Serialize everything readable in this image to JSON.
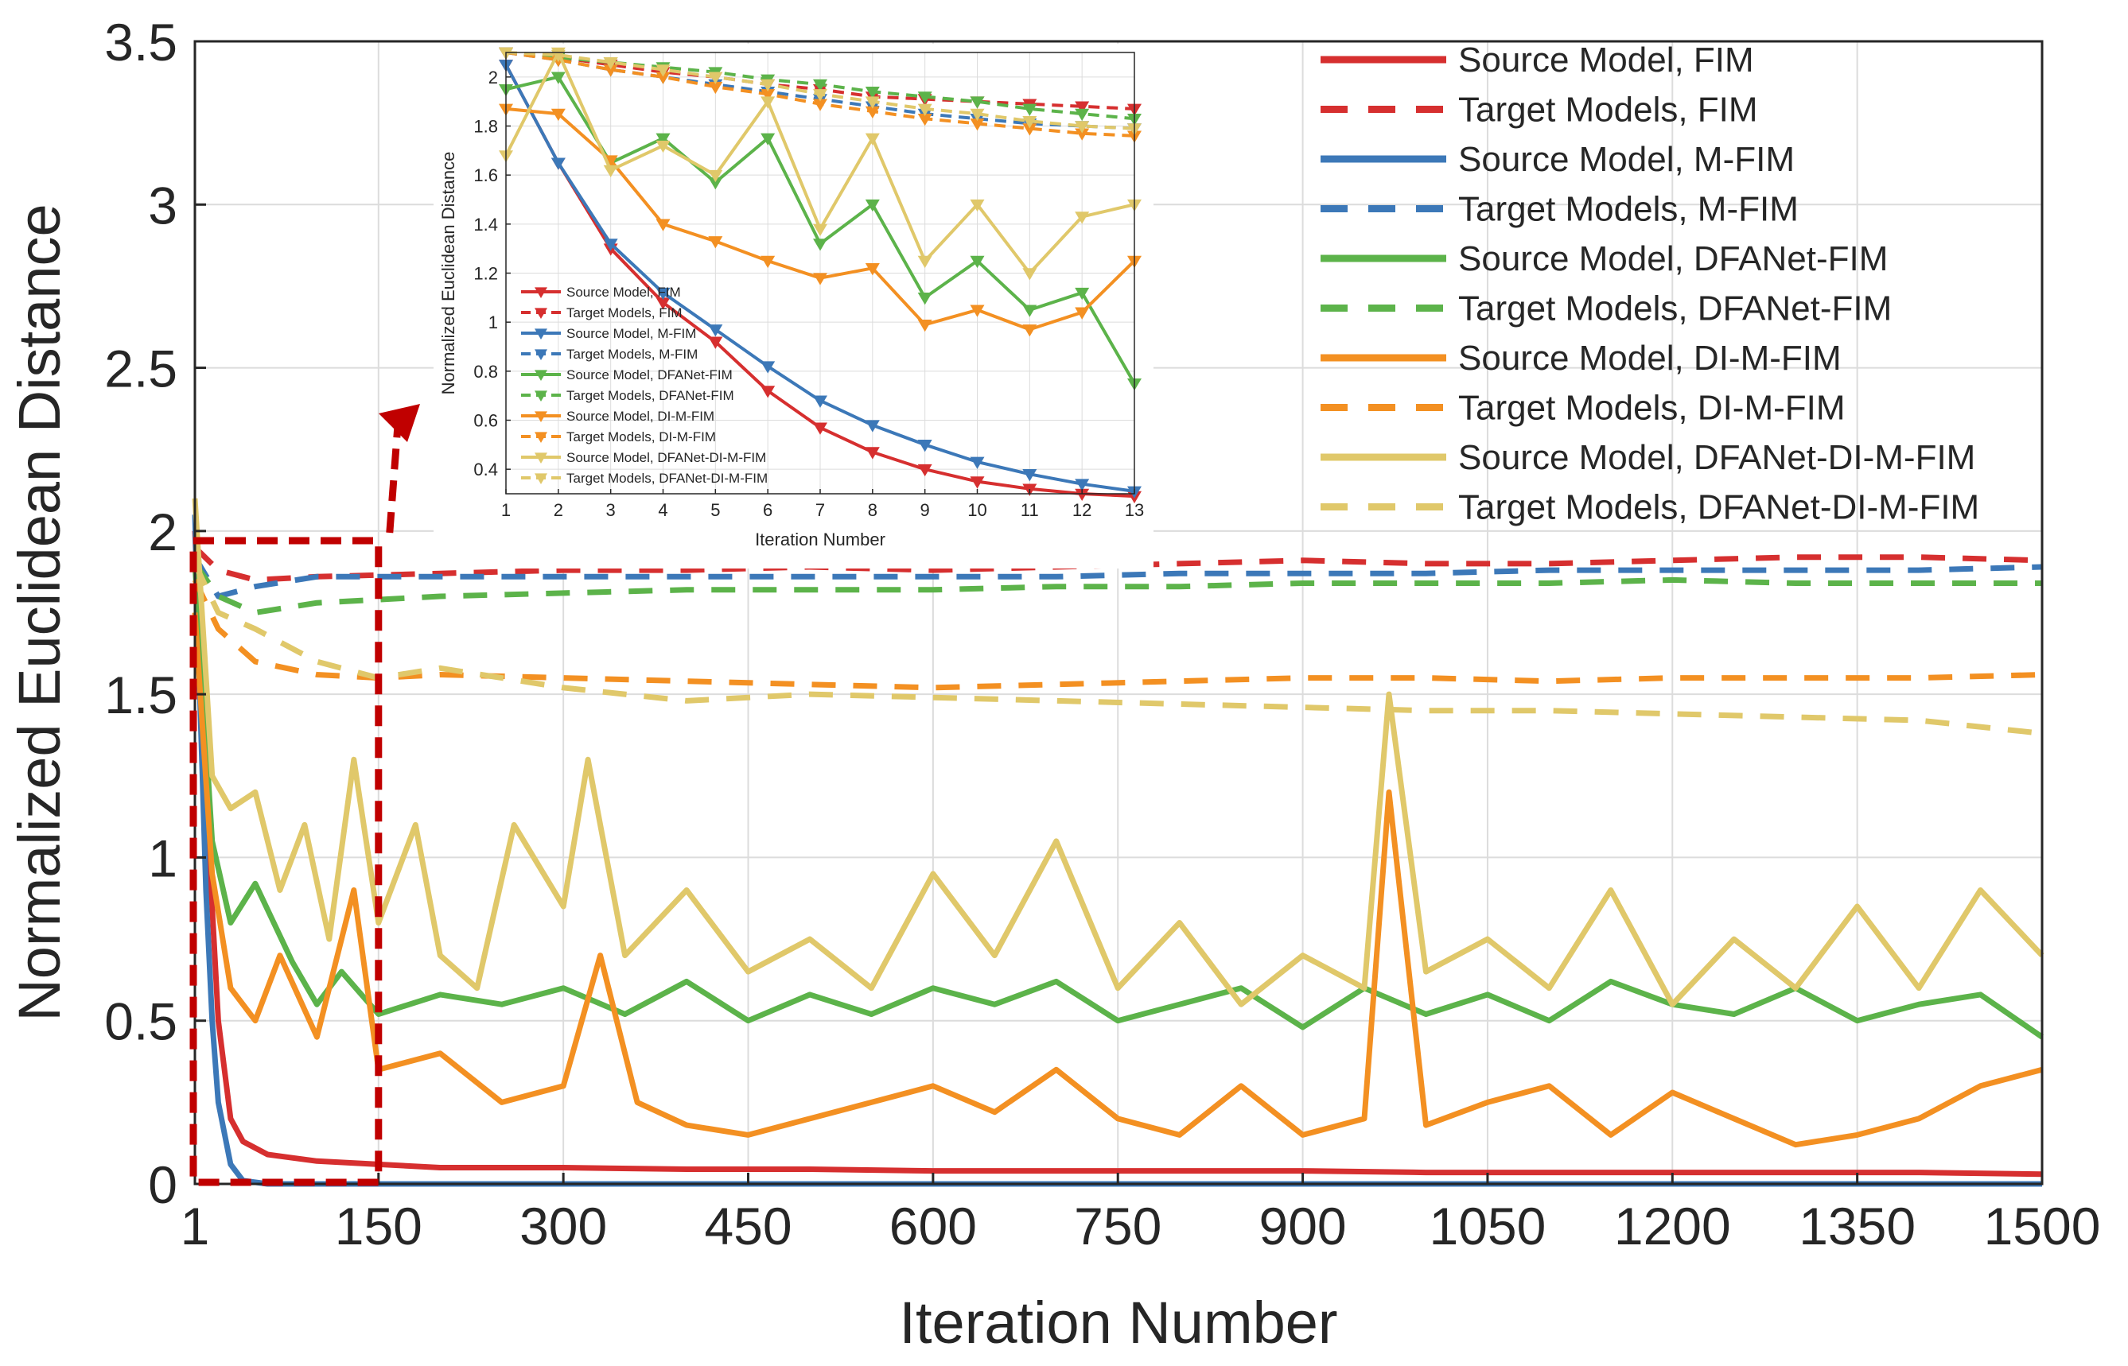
{
  "chart_data": [
    {
      "type": "line",
      "name": "main",
      "xlabel": "Iteration Number",
      "ylabel": "Normalized Euclidean Distance",
      "xlim": [
        1,
        1500
      ],
      "ylim": [
        0,
        3.5
      ],
      "xticks": [
        1,
        150,
        300,
        450,
        600,
        750,
        900,
        1050,
        1200,
        1350,
        1500
      ],
      "xtick_labels": [
        "1",
        "150",
        "300",
        "450",
        "600",
        "750",
        "900",
        "1050",
        "1200",
        "1350",
        "1500"
      ],
      "yticks": [
        0,
        0.5,
        1,
        1.5,
        2,
        2.5,
        3,
        3.5
      ],
      "ytick_labels": [
        "0",
        "0.5",
        "1",
        "1.5",
        "2",
        "2.5",
        "3",
        "3.5"
      ],
      "grid": true,
      "legend_position": "top-right",
      "series": [
        {
          "name": "Source Model, FIM",
          "color": "#d62f2f",
          "style": "solid",
          "x": [
            1,
            10,
            20,
            30,
            40,
            60,
            80,
            100,
            150,
            200,
            300,
            400,
            500,
            600,
            700,
            800,
            900,
            1000,
            1100,
            1200,
            1300,
            1400,
            1500
          ],
          "values": [
            2.0,
            1.2,
            0.5,
            0.2,
            0.13,
            0.09,
            0.08,
            0.07,
            0.06,
            0.05,
            0.05,
            0.045,
            0.045,
            0.04,
            0.04,
            0.04,
            0.04,
            0.035,
            0.035,
            0.035,
            0.035,
            0.035,
            0.03
          ]
        },
        {
          "name": "Target Models, FIM",
          "color": "#d62f2f",
          "style": "dashed",
          "x": [
            1,
            20,
            50,
            100,
            200,
            300,
            400,
            500,
            600,
            700,
            800,
            900,
            1000,
            1100,
            1200,
            1300,
            1400,
            1500
          ],
          "values": [
            1.95,
            1.88,
            1.85,
            1.86,
            1.87,
            1.88,
            1.88,
            1.89,
            1.88,
            1.89,
            1.9,
            1.91,
            1.9,
            1.9,
            1.91,
            1.92,
            1.92,
            1.91
          ]
        },
        {
          "name": "Source Model, M-FIM",
          "color": "#3c78b8",
          "style": "solid",
          "x": [
            1,
            5,
            10,
            15,
            20,
            30,
            40,
            60,
            100,
            200,
            400,
            600,
            800,
            1000,
            1200,
            1500
          ],
          "values": [
            2.05,
            1.5,
            0.9,
            0.5,
            0.25,
            0.06,
            0.01,
            0.0,
            0.0,
            0.0,
            0.0,
            0.0,
            0.0,
            0.0,
            0.0,
            0.0
          ]
        },
        {
          "name": "Target Models, M-FIM",
          "color": "#3c78b8",
          "style": "dashed",
          "x": [
            1,
            20,
            50,
            100,
            200,
            300,
            400,
            500,
            600,
            700,
            800,
            900,
            1000,
            1100,
            1200,
            1300,
            1400,
            1500
          ],
          "values": [
            1.92,
            1.8,
            1.83,
            1.86,
            1.86,
            1.86,
            1.86,
            1.86,
            1.86,
            1.86,
            1.87,
            1.87,
            1.87,
            1.88,
            1.88,
            1.88,
            1.88,
            1.89
          ]
        },
        {
          "name": "Source Model, DFANet-FIM",
          "color": "#5cb34a",
          "style": "solid",
          "x": [
            1,
            15,
            30,
            50,
            80,
            100,
            120,
            150,
            200,
            250,
            300,
            350,
            400,
            450,
            500,
            550,
            600,
            650,
            700,
            750,
            800,
            850,
            900,
            950,
            1000,
            1050,
            1100,
            1150,
            1200,
            1250,
            1300,
            1350,
            1400,
            1450,
            1500
          ],
          "values": [
            1.9,
            1.05,
            0.8,
            0.92,
            0.68,
            0.55,
            0.65,
            0.52,
            0.58,
            0.55,
            0.6,
            0.52,
            0.62,
            0.5,
            0.58,
            0.52,
            0.6,
            0.55,
            0.62,
            0.5,
            0.55,
            0.6,
            0.48,
            0.6,
            0.52,
            0.58,
            0.5,
            0.62,
            0.55,
            0.52,
            0.6,
            0.5,
            0.55,
            0.58,
            0.45
          ]
        },
        {
          "name": "Target Models, DFANet-FIM",
          "color": "#5cb34a",
          "style": "dashed",
          "x": [
            1,
            20,
            50,
            100,
            200,
            300,
            400,
            500,
            600,
            700,
            800,
            900,
            1000,
            1100,
            1200,
            1300,
            1400,
            1500
          ],
          "values": [
            1.9,
            1.8,
            1.75,
            1.78,
            1.8,
            1.81,
            1.82,
            1.82,
            1.82,
            1.83,
            1.83,
            1.84,
            1.84,
            1.84,
            1.85,
            1.84,
            1.84,
            1.84
          ]
        },
        {
          "name": "Source Model, DI-M-FIM",
          "color": "#f39022",
          "style": "solid",
          "x": [
            1,
            15,
            30,
            50,
            70,
            100,
            130,
            150,
            200,
            250,
            300,
            330,
            360,
            400,
            450,
            500,
            550,
            600,
            650,
            700,
            750,
            800,
            850,
            900,
            950,
            970,
            1000,
            1050,
            1100,
            1150,
            1200,
            1250,
            1300,
            1350,
            1400,
            1450,
            1500
          ],
          "values": [
            1.75,
            0.95,
            0.6,
            0.5,
            0.7,
            0.45,
            0.9,
            0.35,
            0.4,
            0.25,
            0.3,
            0.7,
            0.25,
            0.18,
            0.15,
            0.2,
            0.25,
            0.3,
            0.22,
            0.35,
            0.2,
            0.15,
            0.3,
            0.15,
            0.2,
            1.2,
            0.18,
            0.25,
            0.3,
            0.15,
            0.28,
            0.2,
            0.12,
            0.15,
            0.2,
            0.3,
            0.35
          ]
        },
        {
          "name": "Target Models, DI-M-FIM",
          "color": "#f39022",
          "style": "dashed",
          "x": [
            1,
            20,
            50,
            100,
            150,
            200,
            300,
            400,
            500,
            600,
            700,
            800,
            900,
            1000,
            1100,
            1200,
            1300,
            1400,
            1500
          ],
          "values": [
            1.85,
            1.7,
            1.6,
            1.56,
            1.55,
            1.56,
            1.55,
            1.54,
            1.53,
            1.52,
            1.53,
            1.54,
            1.55,
            1.55,
            1.54,
            1.55,
            1.55,
            1.55,
            1.56
          ]
        },
        {
          "name": "Source Model, DFANet-DI-M-FIM",
          "color": "#e0c86a",
          "style": "solid",
          "x": [
            1,
            15,
            30,
            50,
            70,
            90,
            110,
            130,
            150,
            180,
            200,
            230,
            260,
            300,
            320,
            350,
            400,
            450,
            500,
            550,
            600,
            650,
            700,
            750,
            800,
            850,
            900,
            950,
            970,
            1000,
            1050,
            1100,
            1150,
            1200,
            1250,
            1300,
            1350,
            1400,
            1450,
            1500
          ],
          "values": [
            2.1,
            1.25,
            1.15,
            1.2,
            0.9,
            1.1,
            0.75,
            1.3,
            0.8,
            1.1,
            0.7,
            0.6,
            1.1,
            0.85,
            1.3,
            0.7,
            0.9,
            0.65,
            0.75,
            0.6,
            0.95,
            0.7,
            1.05,
            0.6,
            0.8,
            0.55,
            0.7,
            0.6,
            1.5,
            0.65,
            0.75,
            0.6,
            0.9,
            0.55,
            0.75,
            0.6,
            0.85,
            0.6,
            0.9,
            0.7
          ]
        },
        {
          "name": "Target Models, DFANet-DI-M-FIM",
          "color": "#e0c86a",
          "style": "dashed",
          "x": [
            1,
            20,
            50,
            100,
            150,
            200,
            300,
            400,
            500,
            600,
            700,
            800,
            900,
            1000,
            1100,
            1200,
            1300,
            1400,
            1500
          ],
          "values": [
            1.9,
            1.75,
            1.7,
            1.6,
            1.55,
            1.58,
            1.52,
            1.48,
            1.5,
            1.49,
            1.48,
            1.47,
            1.46,
            1.45,
            1.45,
            1.44,
            1.43,
            1.42,
            1.38
          ]
        }
      ]
    },
    {
      "type": "line",
      "name": "inset",
      "xlabel": "Iteration Number",
      "ylabel": "Normalized Euclidean Distance",
      "xlim": [
        1,
        13
      ],
      "ylim": [
        0.3,
        2.1
      ],
      "xticks": [
        1,
        2,
        3,
        4,
        5,
        6,
        7,
        8,
        9,
        10,
        11,
        12,
        13
      ],
      "xtick_labels": [
        "1",
        "2",
        "3",
        "4",
        "5",
        "6",
        "7",
        "8",
        "9",
        "10",
        "11",
        "12",
        "13"
      ],
      "yticks": [
        0.4,
        0.6,
        0.8,
        1,
        1.2,
        1.4,
        1.6,
        1.8,
        2
      ],
      "ytick_labels": [
        "0.4",
        "0.6",
        "0.8",
        "1",
        "1.2",
        "1.4",
        "1.6",
        "1.8",
        "2"
      ],
      "grid": true,
      "legend_position": "bottom-left",
      "marker": "triangle-down",
      "series": [
        {
          "name": "Source Model, FIM",
          "color": "#d62f2f",
          "style": "solid",
          "values": [
            2.05,
            1.65,
            1.3,
            1.08,
            0.92,
            0.72,
            0.57,
            0.47,
            0.4,
            0.35,
            0.32,
            0.3,
            0.29
          ]
        },
        {
          "name": "Target Models, FIM",
          "color": "#d62f2f",
          "style": "dashed",
          "values": [
            2.1,
            2.08,
            2.05,
            2.02,
            2.0,
            1.97,
            1.95,
            1.92,
            1.91,
            1.9,
            1.89,
            1.88,
            1.87
          ]
        },
        {
          "name": "Source Model, M-FIM",
          "color": "#3c78b8",
          "style": "solid",
          "values": [
            2.05,
            1.65,
            1.32,
            1.12,
            0.97,
            0.82,
            0.68,
            0.58,
            0.5,
            0.43,
            0.38,
            0.34,
            0.31
          ]
        },
        {
          "name": "Target Models, M-FIM",
          "color": "#3c78b8",
          "style": "dashed",
          "values": [
            2.1,
            2.07,
            2.03,
            2.0,
            1.97,
            1.94,
            1.91,
            1.88,
            1.85,
            1.83,
            1.81,
            1.8,
            1.79
          ]
        },
        {
          "name": "Source Model, DFANet-FIM",
          "color": "#5cb34a",
          "style": "solid",
          "values": [
            1.95,
            2.0,
            1.65,
            1.75,
            1.57,
            1.75,
            1.32,
            1.48,
            1.1,
            1.25,
            1.05,
            1.12,
            0.75
          ]
        },
        {
          "name": "Target Models, DFANet-FIM",
          "color": "#5cb34a",
          "style": "dashed",
          "values": [
            2.1,
            2.08,
            2.06,
            2.04,
            2.02,
            1.99,
            1.97,
            1.94,
            1.92,
            1.9,
            1.87,
            1.85,
            1.83
          ]
        },
        {
          "name": "Source Model, DI-M-FIM",
          "color": "#f39022",
          "style": "solid",
          "values": [
            1.87,
            1.85,
            1.66,
            1.4,
            1.33,
            1.25,
            1.18,
            1.22,
            0.99,
            1.05,
            0.97,
            1.04,
            1.25
          ]
        },
        {
          "name": "Target Models, DI-M-FIM",
          "color": "#f39022",
          "style": "dashed",
          "values": [
            2.1,
            2.07,
            2.03,
            2.0,
            1.96,
            1.93,
            1.89,
            1.86,
            1.83,
            1.81,
            1.79,
            1.77,
            1.76
          ]
        },
        {
          "name": "Source Model, DFANet-DI-M-FIM",
          "color": "#e0c86a",
          "style": "solid",
          "values": [
            1.68,
            2.1,
            1.62,
            1.72,
            1.6,
            1.9,
            1.38,
            1.75,
            1.25,
            1.48,
            1.2,
            1.43,
            1.48
          ]
        },
        {
          "name": "Target Models, DFANet-DI-M-FIM",
          "color": "#e0c86a",
          "style": "dashed",
          "values": [
            2.1,
            2.09,
            2.06,
            2.03,
            2.0,
            1.97,
            1.93,
            1.9,
            1.87,
            1.85,
            1.82,
            1.8,
            1.79
          ]
        }
      ]
    }
  ],
  "annotations": {
    "zoom_box_color": "#c00000",
    "zoom_box_range": [
      1,
      150
    ]
  }
}
